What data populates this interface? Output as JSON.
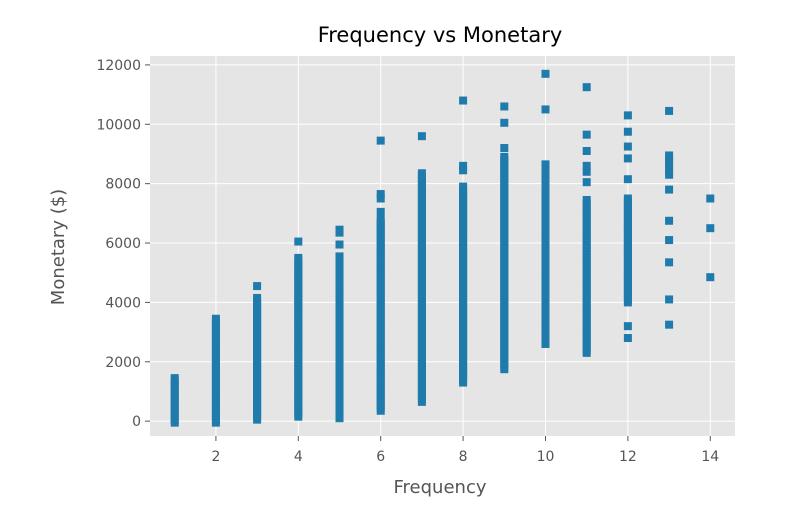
{
  "chart_data": {
    "type": "scatter",
    "title": "Frequency vs Monetary",
    "xlabel": "Frequency",
    "ylabel": "Monetary ($)",
    "xlim": [
      0.4,
      14.6
    ],
    "ylim": [
      -500,
      12300
    ],
    "xticks": [
      2,
      4,
      6,
      8,
      10,
      12,
      14
    ],
    "yticks": [
      0,
      2000,
      4000,
      6000,
      8000,
      10000,
      12000
    ],
    "grid": true,
    "legend": "none",
    "colors": {
      "background": "#e5e5e5",
      "grid": "#ffffff",
      "marker": "#1f7bab"
    },
    "series": [
      {
        "columns": [
          {
            "x": 1,
            "min": -50,
            "max": 1450,
            "extra": []
          },
          {
            "x": 2,
            "min": -50,
            "max": 3450,
            "extra": []
          },
          {
            "x": 3,
            "min": 50,
            "max": 4150,
            "extra": [
              4550
            ]
          },
          {
            "x": 4,
            "min": 150,
            "max": 5500,
            "extra": [
              6050
            ]
          },
          {
            "x": 5,
            "min": 100,
            "max": 5550,
            "extra": [
              5950,
              6350,
              6450
            ]
          },
          {
            "x": 6,
            "min": 350,
            "max": 6800,
            "extra": [
              7050,
              7500,
              7650,
              9450
            ]
          },
          {
            "x": 7,
            "min": 650,
            "max": 8350,
            "extra": [
              9600
            ]
          },
          {
            "x": 8,
            "min": 1300,
            "max": 7900,
            "extra": [
              8450,
              8600,
              10800
            ]
          },
          {
            "x": 9,
            "min": 1750,
            "max": 8900,
            "extra": [
              9200,
              10050,
              10600
            ]
          },
          {
            "x": 10,
            "min": 2600,
            "max": 7700,
            "extra": [
              7950,
              8200,
              8400,
              8650,
              10500,
              11700
            ]
          },
          {
            "x": 11,
            "min": 2300,
            "max": 7450,
            "extra": [
              8050,
              8400,
              8600,
              9100,
              9650,
              11250
            ]
          },
          {
            "x": 12,
            "min": 4000,
            "max": 7500,
            "extra": [
              2800,
              3200,
              8150,
              8850,
              9250,
              9750,
              10300
            ]
          },
          {
            "x": 13,
            "min": null,
            "max": null,
            "extra": [
              3250,
              4100,
              5350,
              6100,
              6750,
              7800,
              8300,
              8450,
              8650,
              8800,
              8950,
              10450
            ]
          },
          {
            "x": 14,
            "min": null,
            "max": null,
            "extra": [
              4850,
              6500,
              7500
            ]
          }
        ]
      }
    ]
  }
}
